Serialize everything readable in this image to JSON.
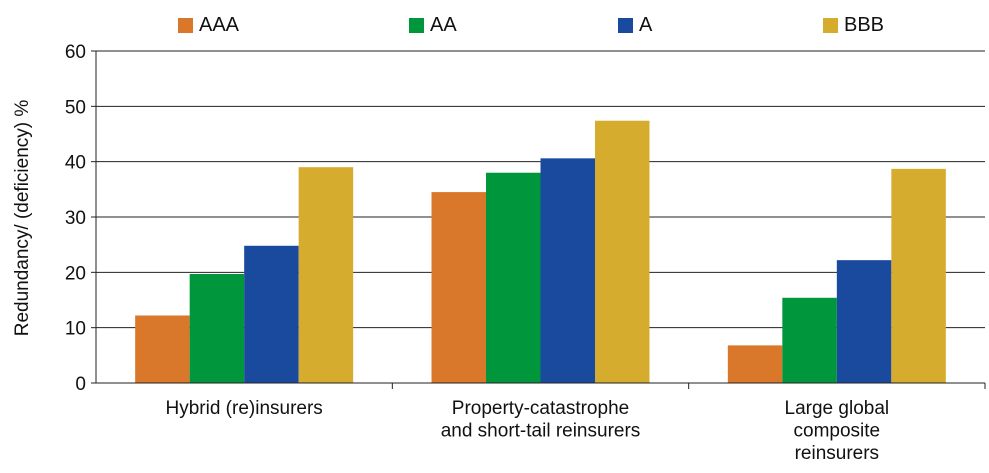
{
  "chart_data": {
    "type": "bar",
    "title": "",
    "xlabel": "",
    "ylabel": "Redundancy/ (deficiency) %",
    "ylim": [
      0,
      60
    ],
    "yticks": [
      0,
      10,
      20,
      30,
      40,
      50,
      60
    ],
    "grid": true,
    "legend_position": "top",
    "categories": [
      [
        "Hybrid (re)insurers"
      ],
      [
        "Property-catastrophe",
        "and short-tail reinsurers"
      ],
      [
        "Large global",
        "composite",
        "reinsurers"
      ]
    ],
    "series": [
      {
        "name": "AAA",
        "color": "#D9782A",
        "values": [
          12.2,
          34.5,
          6.8
        ]
      },
      {
        "name": "AA",
        "color": "#00963C",
        "values": [
          19.7,
          38.0,
          15.4
        ]
      },
      {
        "name": "A",
        "color": "#1A4A9E",
        "values": [
          24.8,
          40.6,
          22.2
        ]
      },
      {
        "name": "BBB",
        "color": "#D6AC2E",
        "values": [
          39.0,
          47.4,
          38.7
        ]
      }
    ]
  }
}
